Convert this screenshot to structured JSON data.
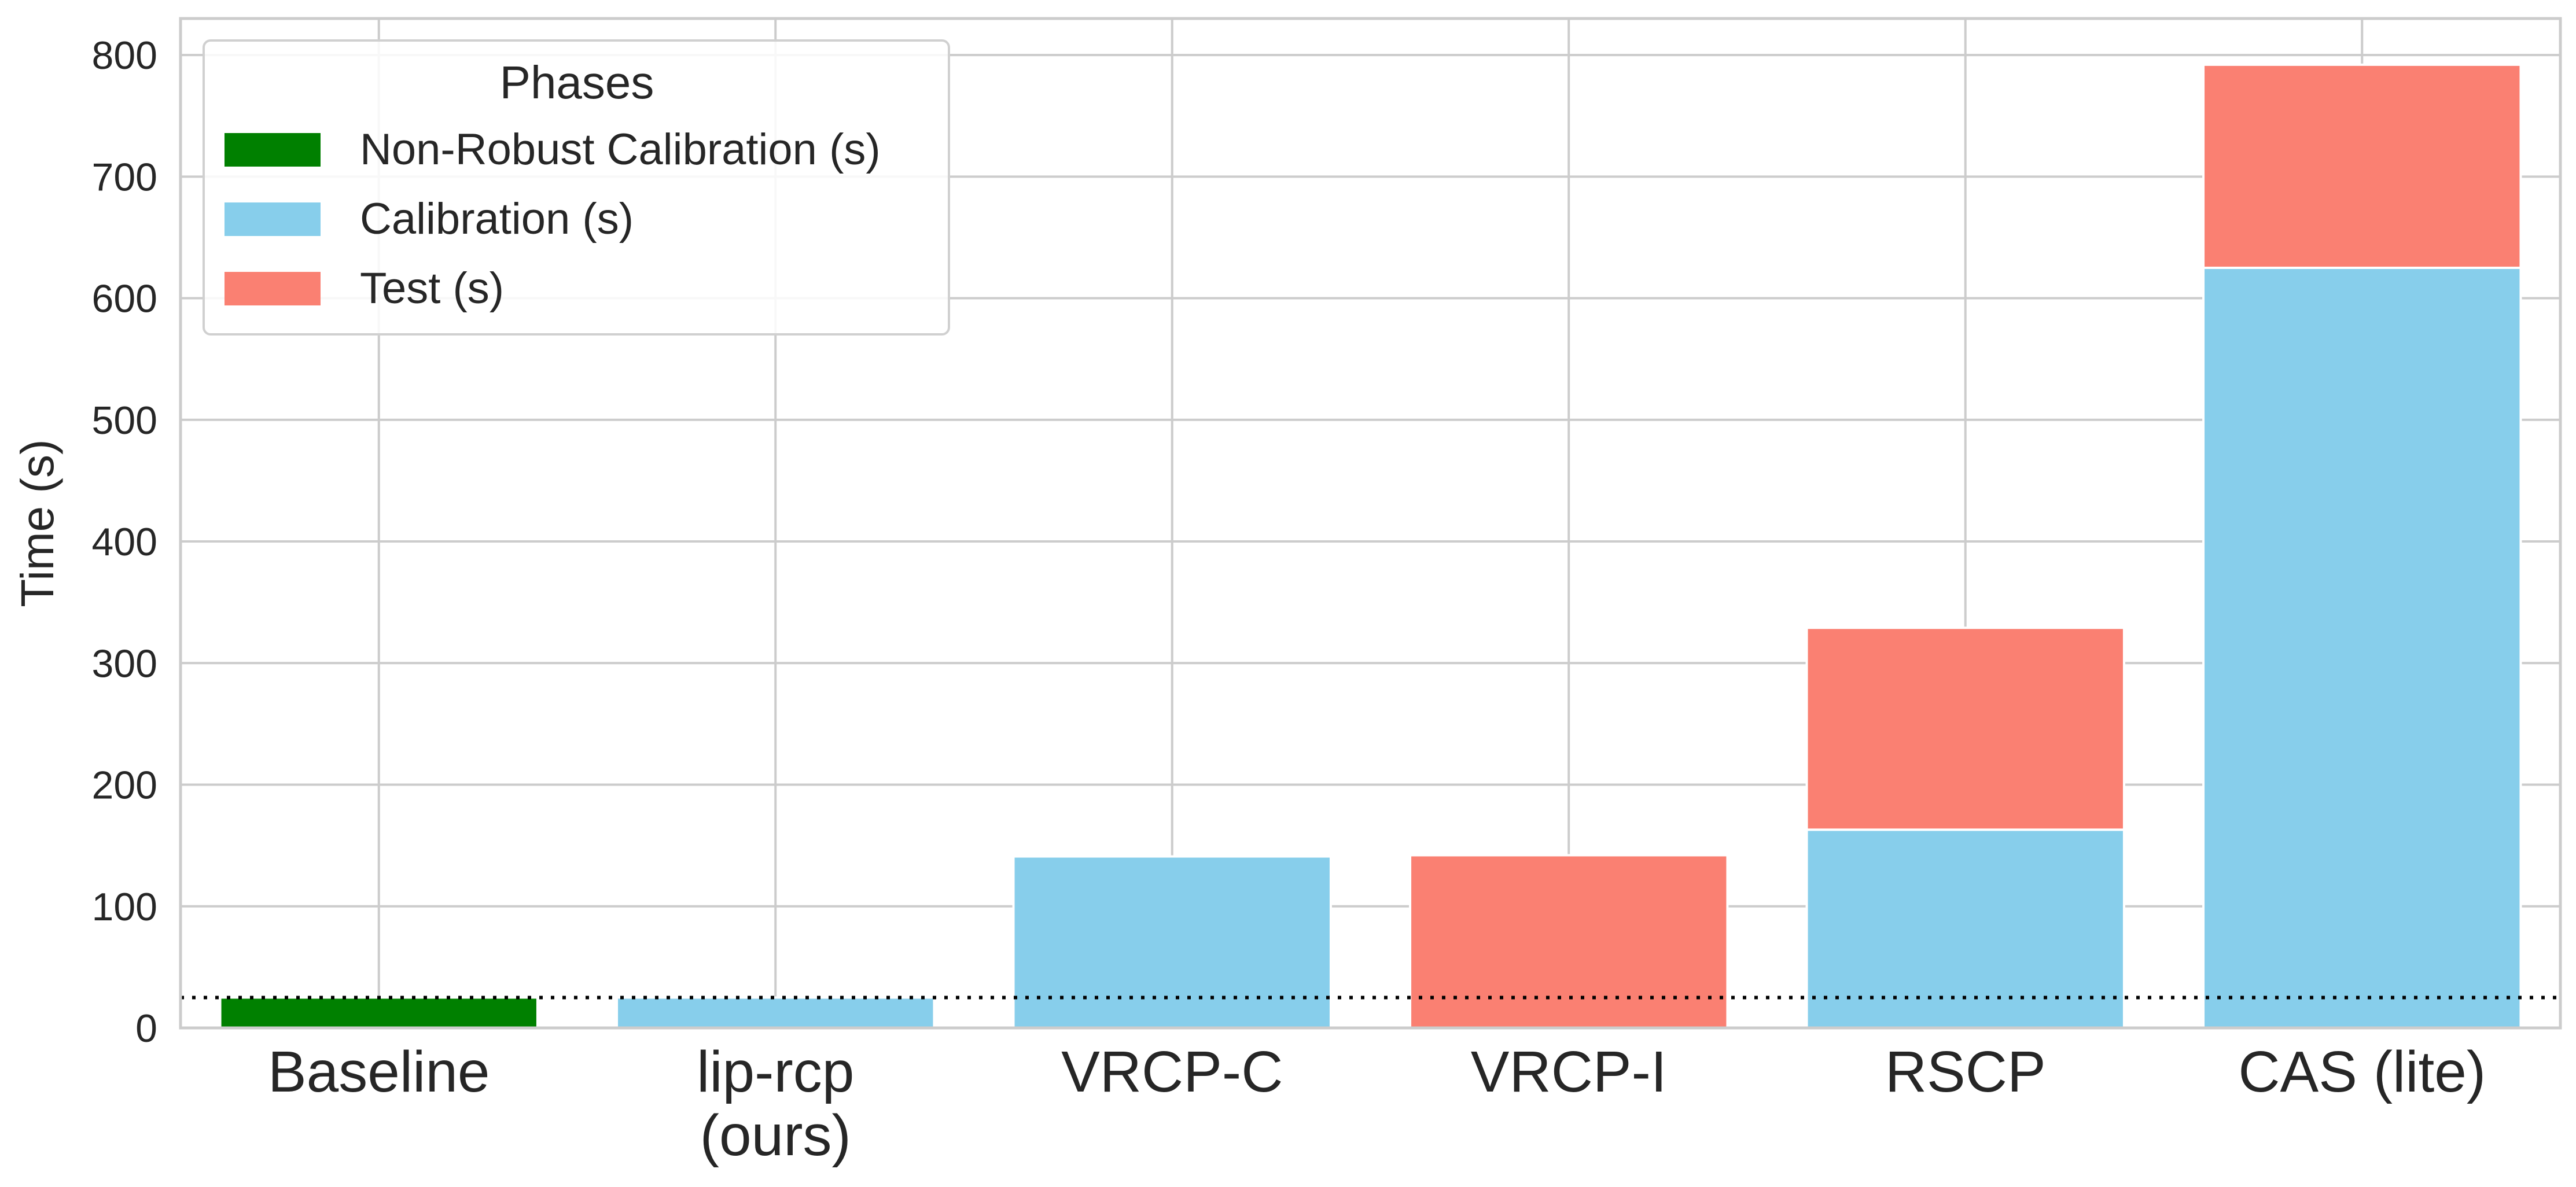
{
  "chart_data": {
    "type": "bar",
    "stacked": true,
    "title": "",
    "xlabel": "",
    "ylabel": "Time (s)",
    "ylim": [
      0,
      830
    ],
    "yticks": [
      0,
      100,
      200,
      300,
      400,
      500,
      600,
      700,
      800
    ],
    "grid": true,
    "categories": [
      "Baseline",
      "lip-rcp\n(ours)",
      "VRCP-C",
      "VRCP-I",
      "RSCP",
      "CAS (lite)"
    ],
    "series": [
      {
        "name": "Non-Robust Calibration (s)",
        "color": "#008000",
        "values": [
          25,
          0,
          0,
          0,
          0,
          0
        ]
      },
      {
        "name": "Calibration (s)",
        "color": "#87CEEB",
        "values": [
          0,
          25,
          141,
          0,
          163,
          625
        ]
      },
      {
        "name": "Test (s)",
        "color": "#FA8072",
        "values": [
          0,
          0,
          0,
          142,
          166,
          167
        ]
      }
    ],
    "reference_line": {
      "y": 25,
      "style": "dotted",
      "color": "#000000"
    },
    "legend": {
      "title": "Phases",
      "placement": "top-left"
    }
  }
}
